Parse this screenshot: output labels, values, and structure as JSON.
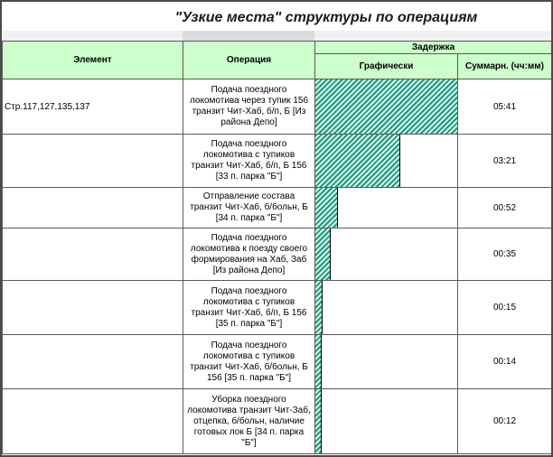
{
  "title": "\"Узкие места\" структуры по операциям",
  "header": {
    "element": "Элемент",
    "operation": "Операция",
    "delay": "Задержка",
    "graphic": "Графически",
    "sum": "Суммарн. (чч:мм)"
  },
  "colors": {
    "header_bg": "#ccffcc",
    "bar_stripe": "#1e9a80",
    "bar_bg": "#d8f2ea"
  },
  "rows": [
    {
      "element": "Стр.117,127,135,137",
      "operation_lines": [
        "Подача поездного",
        "локомотива через тупик 156",
        "транзит Чит-Хаб, б/п, Б [Из",
        "района Депо]"
      ],
      "sum": "05:41",
      "minutes": 341
    },
    {
      "element": "",
      "operation_lines": [
        "Подача поездного",
        "локомотива с тупиков",
        "транзит Чит-Хаб, б/п, Б 156",
        "[33  п. парка \"Б\"]"
      ],
      "sum": "03:21",
      "minutes": 201
    },
    {
      "element": "",
      "operation_lines": [
        "Отправление состава",
        "транзит Чит-Хаб, б/больн, Б",
        "[34  п. парка \"Б\"]"
      ],
      "sum": "00:52",
      "minutes": 52
    },
    {
      "element": "",
      "operation_lines": [
        "Подача поездного",
        "локомотива к поезду своего",
        "формирования на Хаб, Заб",
        "[Из района Депо]"
      ],
      "sum": "00:35",
      "minutes": 35
    },
    {
      "element": "",
      "operation_lines": [
        "Подача поездного",
        "локомотива с тупиков",
        "транзит Чит-Хаб, б/п, Б 156",
        "[35  п. парка \"Б\"]"
      ],
      "sum": "00:15",
      "minutes": 15
    },
    {
      "element": "",
      "operation_lines": [
        "Подача поездного",
        "локомотива с тупиков",
        "транзит Чит-Хаб, б/больн, Б",
        "156 [35  п. парка \"Б\"]"
      ],
      "sum": "00:14",
      "minutes": 14
    },
    {
      "element": "",
      "operation_lines": [
        "Уборка поездного",
        "локомотива транзит Чит-Заб,",
        "отцепка, б/больн, наличие",
        "готовых лок Б [34  п. парка",
        "\"Б\"]"
      ],
      "sum": "00:12",
      "minutes": 12
    }
  ]
}
